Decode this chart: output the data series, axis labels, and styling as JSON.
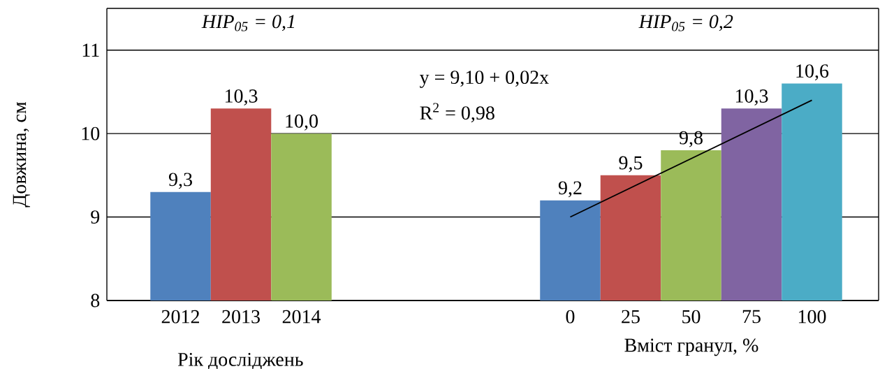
{
  "chart_data": [
    {
      "type": "bar",
      "title": "HIP$_{05}$ = 0,1",
      "xlabel": "Рік досліджень",
      "ylabel": "Довжина, см",
      "categories": [
        "2012",
        "2013",
        "2014"
      ],
      "values": [
        9.3,
        10.3,
        10.0
      ],
      "colors": [
        "#4f81bd",
        "#c0504d",
        "#9bbb59"
      ],
      "value_labels": [
        "9,3",
        "10,3",
        "10,0"
      ],
      "ylim": [
        8,
        11.5
      ],
      "yticks": [
        8,
        9,
        10,
        11
      ],
      "grid": "y"
    },
    {
      "type": "bar",
      "title": "HIP$_{05}$ = 0,2",
      "xlabel": "Вміст гранул, %",
      "categories": [
        "0",
        "25",
        "50",
        "75",
        "100"
      ],
      "series": [
        {
          "type": "bar",
          "values": [
            9.2,
            9.5,
            9.8,
            10.3,
            10.6
          ],
          "colors": [
            "#4f81bd",
            "#c0504d",
            "#9bbb59",
            "#8064a2",
            "#4bacc6"
          ],
          "value_labels": [
            "9,2",
            "9,5",
            "9,8",
            "10,3",
            "10,6"
          ]
        },
        {
          "type": "line",
          "x": [
            "0",
            "100"
          ],
          "values": [
            9.0,
            10.4
          ],
          "color": "#000000"
        }
      ],
      "annotations": [
        "y = 9,10 + 0,02x",
        "R$^{2}$ = 0,98"
      ],
      "ylim": [
        8,
        11.5
      ],
      "yticks": [
        8,
        9,
        10,
        11
      ],
      "grid": "y",
      "tick_labels": "x"
    }
  ]
}
